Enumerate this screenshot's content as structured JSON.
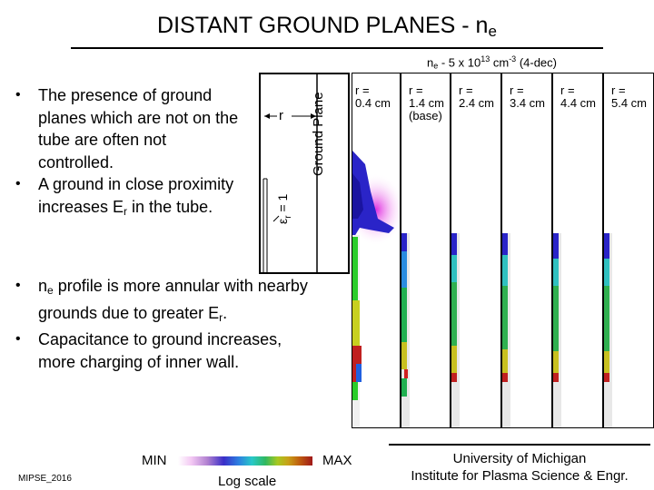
{
  "slide": {
    "title_main": "DISTANT GROUND PLANES - n",
    "title_sub": "e",
    "bullets_top": [
      {
        "segments": [
          {
            "t": "The presence of ground planes which are not on the tube are often not controlled."
          }
        ]
      },
      {
        "segments": [
          {
            "t": "A ground in close proximity increases E"
          },
          {
            "sub": "r"
          },
          {
            "t": " in the tube."
          }
        ]
      }
    ],
    "bullets_bottom": [
      {
        "segments": [
          {
            "t": "n"
          },
          {
            "sub": "e"
          },
          {
            "t": " profile is more annular with nearby grounds due to greater E"
          },
          {
            "sub": "r"
          },
          {
            "t": "."
          }
        ]
      },
      {
        "segments": [
          {
            "t": "Capacitance to ground increases, more charging of inner wall."
          }
        ]
      }
    ]
  },
  "schematic": {
    "ground_plane_label": "Ground Plane",
    "r_label": "r",
    "eps_label_prefix": "ε",
    "eps_label_sub": "r",
    "eps_label_suffix": " = 1"
  },
  "figure": {
    "caption_pre": "n",
    "caption_sub": "e",
    "caption_mid": " - 5 x 10",
    "caption_sup1": "13",
    "caption_mid2": " cm",
    "caption_sup2": "-3",
    "caption_post": " (4-dec)",
    "panels": [
      {
        "l1": "r =",
        "l2": "0.4 cm",
        "l3": ""
      },
      {
        "l1": "r =",
        "l2": "1.4 cm",
        "l3": "(base)"
      },
      {
        "l1": "r =",
        "l2": "2.4 cm",
        "l3": ""
      },
      {
        "l1": "r =",
        "l2": "3.4 cm",
        "l3": ""
      },
      {
        "l1": "r =",
        "l2": "4.4 cm",
        "l3": ""
      },
      {
        "l1": "r =",
        "l2": "5.4 cm",
        "l3": ""
      }
    ]
  },
  "colorbar": {
    "min": "MIN",
    "max": "MAX",
    "scale_label": "Log scale"
  },
  "footer": {
    "left_tag": "MIPSE_2016",
    "institution_line1": "University of Michigan",
    "institution_line2": "Institute for Plasma Science & Engr."
  }
}
